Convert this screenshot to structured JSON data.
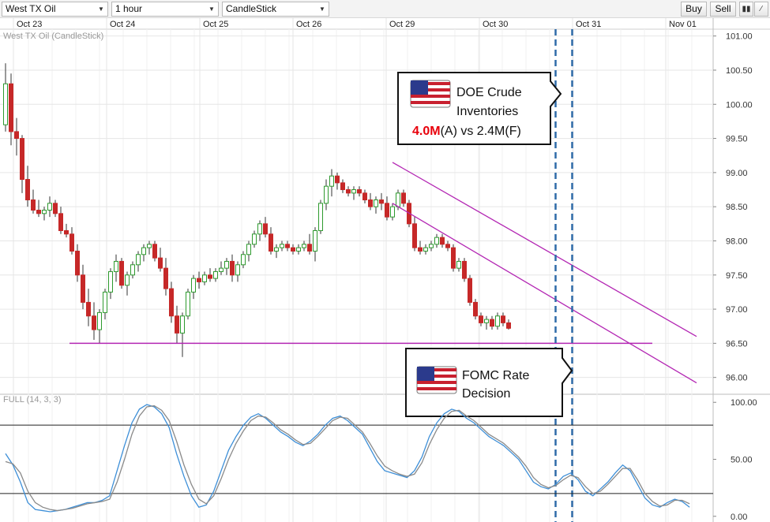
{
  "toolbar": {
    "instrument": "West TX Oil",
    "interval": "1 hour",
    "chart_type": "CandleStick",
    "buy_label": "Buy",
    "sell_label": "Sell",
    "icons": [
      "bar-chart-icon",
      "draw-line-icon"
    ]
  },
  "colors": {
    "up": "#2e9a2e",
    "down": "#c62828",
    "channel": "#b326b3",
    "support": "#b326b3",
    "event_line": "#2f6ba8",
    "stoch_k": "#3d8fd8",
    "stoch_d": "#8a8a8a"
  },
  "chart_data": [
    {
      "type": "candlestick",
      "title": "West TX Oil (CandleStick)",
      "x_ticks": [
        "Oct 23",
        "Oct 24",
        "Oct 25",
        "Oct 26",
        "Oct 29",
        "Oct 30",
        "Oct 31",
        "Nov 01"
      ],
      "y_ticks": [
        "101.00",
        "100.50",
        "100.00",
        "99.50",
        "99.00",
        "98.50",
        "98.00",
        "97.50",
        "97.00",
        "96.50",
        "96.00"
      ],
      "ylim": [
        95.8,
        101.1
      ],
      "grid": true,
      "ohlc": [
        [
          99.7,
          100.6,
          99.6,
          100.3
        ],
        [
          100.3,
          100.45,
          99.4,
          99.6
        ],
        [
          99.6,
          99.8,
          99.25,
          99.5
        ],
        [
          99.5,
          99.55,
          98.7,
          98.9
        ],
        [
          98.9,
          99.1,
          98.5,
          98.6
        ],
        [
          98.6,
          98.75,
          98.4,
          98.45
        ],
        [
          98.45,
          98.6,
          98.35,
          98.4
        ],
        [
          98.4,
          98.5,
          98.3,
          98.45
        ],
        [
          98.45,
          98.65,
          98.35,
          98.55
        ],
        [
          98.55,
          98.6,
          98.35,
          98.4
        ],
        [
          98.4,
          98.5,
          98.1,
          98.15
        ],
        [
          98.15,
          98.25,
          98.05,
          98.1
        ],
        [
          98.1,
          98.2,
          97.8,
          97.85
        ],
        [
          97.85,
          97.95,
          97.4,
          97.5
        ],
        [
          97.5,
          97.65,
          97.0,
          97.1
        ],
        [
          97.1,
          97.3,
          96.75,
          96.9
        ],
        [
          96.9,
          97.1,
          96.55,
          96.7
        ],
        [
          96.7,
          97.0,
          96.5,
          96.95
        ],
        [
          96.95,
          97.3,
          96.85,
          97.25
        ],
        [
          97.25,
          97.6,
          97.15,
          97.55
        ],
        [
          97.55,
          97.8,
          97.4,
          97.7
        ],
        [
          97.7,
          97.75,
          97.3,
          97.35
        ],
        [
          97.35,
          97.55,
          97.2,
          97.5
        ],
        [
          97.5,
          97.7,
          97.45,
          97.65
        ],
        [
          97.65,
          97.85,
          97.55,
          97.8
        ],
        [
          97.8,
          97.95,
          97.7,
          97.9
        ],
        [
          97.9,
          98.0,
          97.8,
          97.95
        ],
        [
          97.95,
          98.0,
          97.7,
          97.75
        ],
        [
          97.75,
          97.9,
          97.55,
          97.6
        ],
        [
          97.6,
          97.75,
          97.2,
          97.3
        ],
        [
          97.3,
          97.4,
          96.8,
          96.9
        ],
        [
          96.9,
          97.05,
          96.5,
          96.65
        ],
        [
          96.65,
          96.95,
          96.3,
          96.9
        ],
        [
          96.9,
          97.3,
          96.85,
          97.25
        ],
        [
          97.25,
          97.5,
          97.15,
          97.45
        ],
        [
          97.45,
          97.55,
          97.3,
          97.4
        ],
        [
          97.4,
          97.55,
          97.35,
          97.5
        ],
        [
          97.5,
          97.6,
          97.4,
          97.45
        ],
        [
          97.45,
          97.6,
          97.4,
          97.55
        ],
        [
          97.55,
          97.7,
          97.5,
          97.6
        ],
        [
          97.6,
          97.75,
          97.5,
          97.7
        ],
        [
          97.7,
          97.8,
          97.4,
          97.5
        ],
        [
          97.5,
          97.7,
          97.4,
          97.65
        ],
        [
          97.65,
          97.85,
          97.6,
          97.8
        ],
        [
          97.8,
          98.0,
          97.7,
          97.95
        ],
        [
          97.95,
          98.15,
          97.9,
          98.1
        ],
        [
          98.1,
          98.3,
          98.0,
          98.25
        ],
        [
          98.25,
          98.35,
          98.05,
          98.1
        ],
        [
          98.1,
          98.2,
          97.8,
          97.85
        ],
        [
          97.85,
          97.95,
          97.75,
          97.9
        ],
        [
          97.9,
          98.0,
          97.85,
          97.95
        ],
        [
          97.95,
          98.0,
          97.85,
          97.9
        ],
        [
          97.9,
          97.95,
          97.8,
          97.85
        ],
        [
          97.85,
          97.95,
          97.8,
          97.9
        ],
        [
          97.9,
          98.0,
          97.85,
          97.95
        ],
        [
          97.95,
          98.1,
          97.8,
          97.85
        ],
        [
          97.85,
          98.2,
          97.7,
          98.15
        ],
        [
          98.15,
          98.6,
          98.1,
          98.55
        ],
        [
          98.55,
          98.9,
          98.45,
          98.8
        ],
        [
          98.8,
          99.05,
          98.65,
          98.95
        ],
        [
          98.95,
          99.0,
          98.75,
          98.85
        ],
        [
          98.85,
          98.9,
          98.7,
          98.75
        ],
        [
          98.75,
          98.8,
          98.65,
          98.7
        ],
        [
          98.7,
          98.8,
          98.6,
          98.75
        ],
        [
          98.75,
          98.8,
          98.65,
          98.7
        ],
        [
          98.7,
          98.75,
          98.55,
          98.6
        ],
        [
          98.6,
          98.7,
          98.45,
          98.5
        ],
        [
          98.5,
          98.65,
          98.4,
          98.6
        ],
        [
          98.6,
          98.7,
          98.45,
          98.55
        ],
        [
          98.55,
          98.65,
          98.3,
          98.35
        ],
        [
          98.35,
          98.55,
          98.3,
          98.5
        ],
        [
          98.5,
          98.75,
          98.45,
          98.7
        ],
        [
          98.7,
          98.75,
          98.5,
          98.55
        ],
        [
          98.55,
          98.6,
          98.2,
          98.25
        ],
        [
          98.25,
          98.35,
          97.85,
          97.9
        ],
        [
          97.9,
          98.0,
          97.8,
          97.85
        ],
        [
          97.85,
          97.95,
          97.8,
          97.9
        ],
        [
          97.9,
          98.0,
          97.85,
          97.95
        ],
        [
          97.95,
          98.1,
          97.9,
          98.05
        ],
        [
          98.05,
          98.1,
          97.9,
          97.95
        ],
        [
          97.95,
          98.0,
          97.85,
          97.9
        ],
        [
          97.9,
          97.95,
          97.55,
          97.6
        ],
        [
          97.6,
          97.75,
          97.55,
          97.7
        ],
        [
          97.7,
          97.75,
          97.4,
          97.45
        ],
        [
          97.45,
          97.5,
          97.05,
          97.1
        ],
        [
          97.1,
          97.15,
          96.85,
          96.9
        ],
        [
          96.9,
          96.95,
          96.75,
          96.8
        ],
        [
          96.8,
          96.9,
          96.7,
          96.85
        ],
        [
          96.85,
          96.9,
          96.7,
          96.75
        ],
        [
          96.75,
          96.95,
          96.7,
          96.9
        ],
        [
          96.9,
          96.95,
          96.75,
          96.8
        ],
        [
          96.8,
          96.85,
          96.7,
          96.72
        ]
      ],
      "support_level": 96.5,
      "channel_upper": {
        "from_bar": 70,
        "from_price": 99.15,
        "to_bar": 125,
        "to_price": 96.6
      },
      "channel_lower": {
        "from_bar": 70,
        "from_price": 98.55,
        "to_bar": 125,
        "to_price": 95.92
      },
      "event_lines_at_bar": [
        99.5,
        102.5
      ],
      "annotations": [
        {
          "name": "doe-callout",
          "lines": [
            "DOE Crude",
            "Inventories"
          ],
          "actual": "4.0M",
          "rest": "(A) vs 2.4M(F)"
        },
        {
          "name": "fomc-callout",
          "lines": [
            "FOMC Rate",
            "Decision"
          ]
        }
      ]
    },
    {
      "type": "line",
      "title": "FULL (14, 3, 3)",
      "y_ticks": [
        "100.00",
        "50.00",
        "0.00"
      ],
      "ylim": [
        -5,
        105
      ],
      "levels": [
        80,
        20
      ],
      "series": [
        {
          "values": [
            55,
            45,
            30,
            12,
            6,
            5,
            4,
            5,
            6,
            8,
            10,
            12,
            12,
            14,
            18,
            40,
            62,
            82,
            94,
            98,
            96,
            90,
            78,
            55,
            35,
            18,
            8,
            10,
            22,
            40,
            58,
            70,
            80,
            87,
            90,
            86,
            80,
            74,
            70,
            65,
            62,
            66,
            72,
            80,
            86,
            88,
            84,
            78,
            72,
            60,
            48,
            40,
            38,
            36,
            34,
            40,
            52,
            70,
            82,
            90,
            94,
            92,
            86,
            82,
            76,
            70,
            66,
            62,
            56,
            50,
            40,
            30,
            26,
            24,
            28,
            35,
            38,
            32,
            22,
            18,
            24,
            30,
            38,
            45,
            40,
            28,
            16,
            10,
            8,
            12,
            15,
            13,
            8
          ]
        },
        {
          "values": [
            48,
            46,
            38,
            22,
            12,
            8,
            6,
            5,
            6,
            7,
            9,
            11,
            12,
            13,
            15,
            30,
            50,
            72,
            88,
            96,
            97,
            93,
            84,
            66,
            45,
            28,
            15,
            11,
            18,
            33,
            50,
            64,
            75,
            84,
            88,
            87,
            82,
            76,
            72,
            67,
            63,
            64,
            70,
            77,
            84,
            87,
            86,
            80,
            74,
            64,
            53,
            44,
            40,
            37,
            35,
            37,
            47,
            63,
            76,
            86,
            92,
            93,
            88,
            84,
            78,
            72,
            68,
            64,
            58,
            52,
            44,
            34,
            28,
            25,
            27,
            32,
            36,
            34,
            26,
            20,
            22,
            28,
            35,
            42,
            42,
            32,
            20,
            13,
            9,
            10,
            14,
            14,
            11
          ]
        }
      ]
    }
  ]
}
